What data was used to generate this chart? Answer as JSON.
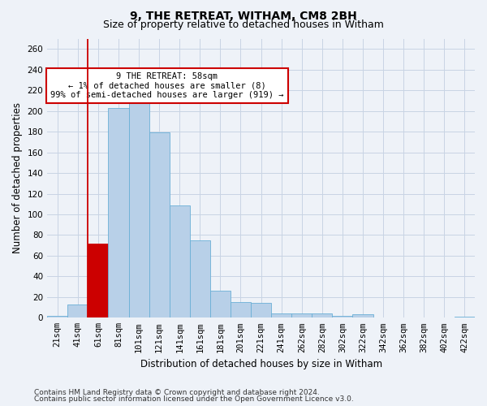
{
  "title": "9, THE RETREAT, WITHAM, CM8 2BH",
  "subtitle": "Size of property relative to detached houses in Witham",
  "xlabel": "Distribution of detached houses by size in Witham",
  "ylabel": "Number of detached properties",
  "categories": [
    "21sqm",
    "41sqm",
    "61sqm",
    "81sqm",
    "101sqm",
    "121sqm",
    "141sqm",
    "161sqm",
    "181sqm",
    "201sqm",
    "221sqm",
    "241sqm",
    "262sqm",
    "282sqm",
    "302sqm",
    "322sqm",
    "342sqm",
    "362sqm",
    "382sqm",
    "402sqm",
    "422sqm"
  ],
  "values": [
    2,
    13,
    72,
    203,
    213,
    179,
    109,
    75,
    26,
    15,
    14,
    4,
    4,
    4,
    2,
    3,
    0,
    0,
    0,
    0,
    1
  ],
  "bar_color": "#b8d0e8",
  "bar_edge_color": "#6aafd6",
  "highlight_bar_index": 2,
  "highlight_bar_color": "#cc0000",
  "highlight_bar_edge_color": "#cc0000",
  "annotation_text": "9 THE RETREAT: 58sqm\n← 1% of detached houses are smaller (8)\n99% of semi-detached houses are larger (919) →",
  "annotation_box_color": "#ffffff",
  "annotation_box_edge_color": "#cc0000",
  "vline_x": 1.5,
  "ylim": [
    0,
    270
  ],
  "yticks": [
    0,
    20,
    40,
    60,
    80,
    100,
    120,
    140,
    160,
    180,
    200,
    220,
    240,
    260
  ],
  "footer_line1": "Contains HM Land Registry data © Crown copyright and database right 2024.",
  "footer_line2": "Contains public sector information licensed under the Open Government Licence v3.0.",
  "background_color": "#eef2f8",
  "grid_color": "#c8d4e4",
  "title_fontsize": 10,
  "subtitle_fontsize": 9,
  "axis_label_fontsize": 8.5,
  "tick_fontsize": 7.5,
  "annotation_fontsize": 7.5,
  "footer_fontsize": 6.5
}
